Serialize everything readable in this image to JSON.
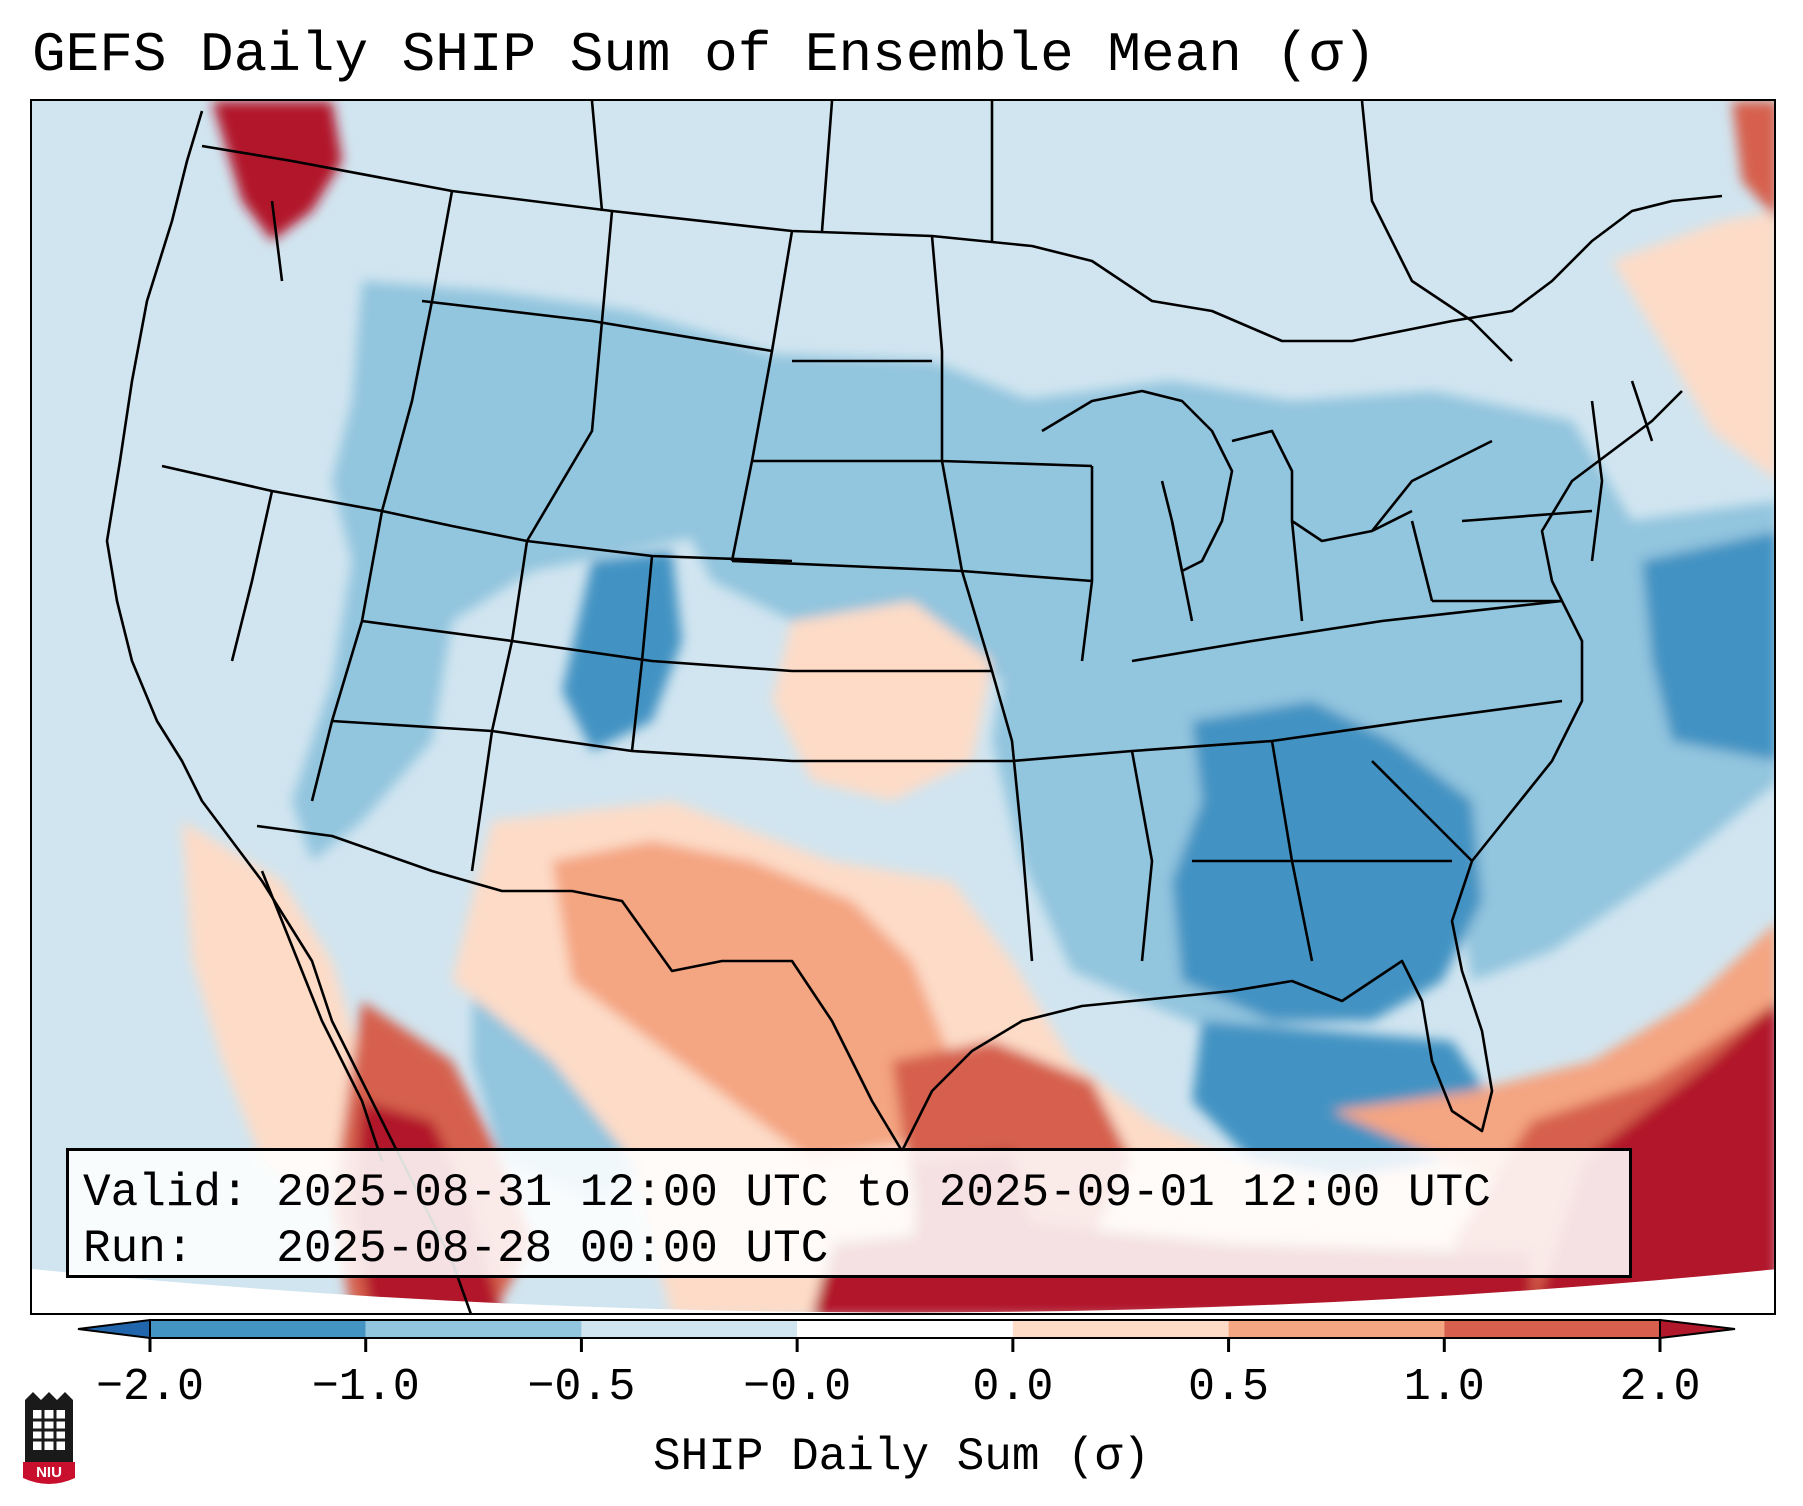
{
  "title": "GEFS Daily SHIP Sum of Ensemble Mean (σ)",
  "info": {
    "valid_line": "Valid: 2025-08-31 12:00 UTC to 2025-09-01 12:00 UTC",
    "run_line": "Run:   2025-08-28 00:00 UTC"
  },
  "colorbar": {
    "label": "SHIP Daily Sum (σ)",
    "ticks": [
      "−2.0",
      "−1.0",
      "−0.5",
      "−0.0",
      "0.0",
      "0.5",
      "1.0",
      "2.0"
    ],
    "bins": [
      {
        "range": "< -2.0",
        "color": "#2166ac"
      },
      {
        "range": "-2.0 to -1.0",
        "color": "#4393c3"
      },
      {
        "range": "-1.0 to -0.5",
        "color": "#92c5de"
      },
      {
        "range": "-0.5 to -0.0",
        "color": "#d1e5f0"
      },
      {
        "range": "-0.0 to 0.0",
        "color": "#ffffff"
      },
      {
        "range": "0.0 to 0.5",
        "color": "#fddbc7"
      },
      {
        "range": "0.5 to 1.0",
        "color": "#f4a582"
      },
      {
        "range": "1.0 to 2.0",
        "color": "#d6604d"
      },
      {
        "range": "> 2.0",
        "color": "#b2182b"
      }
    ]
  },
  "map": {
    "projection": "Lambert Conformal",
    "field": "SHIP daily sum anomaly",
    "background_color": "#d1e5f0"
  },
  "logo": {
    "text": "NIU",
    "color": "#c8102e"
  }
}
